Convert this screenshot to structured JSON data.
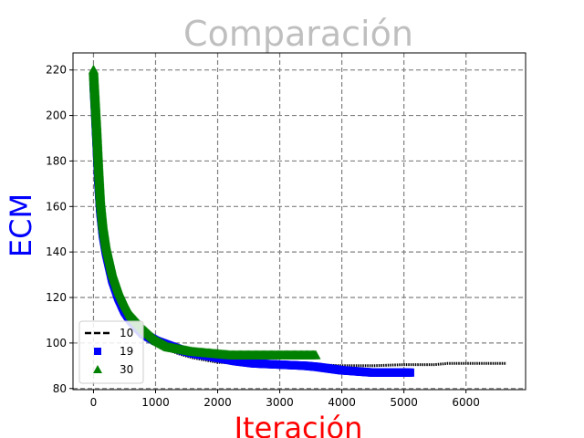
{
  "chart_data": {
    "type": "line",
    "title": "Comparación",
    "title_color": "#bfbfbf",
    "xlabel": "Iteración",
    "xlabel_color": "#ff0000",
    "ylabel": "ECM",
    "ylabel_color": "#0000ff",
    "xlim": [
      -330,
      6960
    ],
    "ylim": [
      79.5,
      227.5
    ],
    "xticks": [
      0,
      1000,
      2000,
      3000,
      4000,
      5000,
      6000
    ],
    "yticks": [
      80,
      100,
      120,
      140,
      160,
      180,
      200,
      220
    ],
    "x_tick_labels": [
      "0",
      "1000",
      "2000",
      "3000",
      "4000",
      "5000",
      "6000"
    ],
    "y_tick_labels": [
      "80",
      "100",
      "120",
      "140",
      "160",
      "180",
      "200",
      "220"
    ],
    "grid": true,
    "grid_style": "dashed",
    "legend_position": "lower-left",
    "series": [
      {
        "name": "10",
        "color": "#000000",
        "marker": "dashed-line",
        "x": [
          0,
          30,
          60,
          100,
          150,
          200,
          300,
          400,
          500,
          600,
          700,
          800,
          1000,
          1200,
          1400,
          1600,
          1800,
          2000,
          2500,
          3000,
          3500,
          4000,
          4500,
          5000,
          5500,
          5700,
          6000,
          6300,
          6650
        ],
        "y": [
          214,
          200,
          183,
          164,
          150,
          142,
          129,
          121,
          115,
          111,
          107,
          104,
          100,
          97,
          95,
          93.5,
          92.5,
          91.5,
          91,
          90.5,
          90.5,
          90,
          90,
          90.5,
          90.5,
          91,
          91,
          91,
          91
        ]
      },
      {
        "name": "19",
        "color": "#0000ff",
        "marker": "square",
        "x": [
          0,
          20,
          50,
          80,
          110,
          150,
          200,
          300,
          400,
          500,
          600,
          700,
          800,
          1000,
          1200,
          1400,
          1600,
          1800,
          2000,
          2300,
          2600,
          3000,
          3400,
          3600,
          4000,
          4500,
          5000,
          5100
        ],
        "y": [
          215,
          205,
          188,
          170,
          158,
          148,
          140,
          128,
          120,
          114,
          110,
          107,
          104,
          101,
          99,
          97,
          95.5,
          94.5,
          93.5,
          92,
          91,
          90.5,
          90,
          89.5,
          88,
          87,
          87,
          87
        ]
      },
      {
        "name": "30",
        "color": "#008000",
        "marker": "triangle",
        "x": [
          0,
          20,
          50,
          80,
          110,
          150,
          200,
          300,
          400,
          500,
          600,
          700,
          800,
          1000,
          1200,
          1400,
          1600,
          1800,
          2000,
          2200,
          2500,
          2800,
          3000,
          3300,
          3580
        ],
        "y": [
          220,
          210,
          195,
          178,
          163,
          152,
          143,
          131,
          123,
          117,
          112,
          109,
          106,
          101,
          98,
          97,
          96,
          95.5,
          95,
          94.5,
          94.5,
          94.5,
          94.5,
          94.5,
          94.5
        ]
      }
    ]
  }
}
